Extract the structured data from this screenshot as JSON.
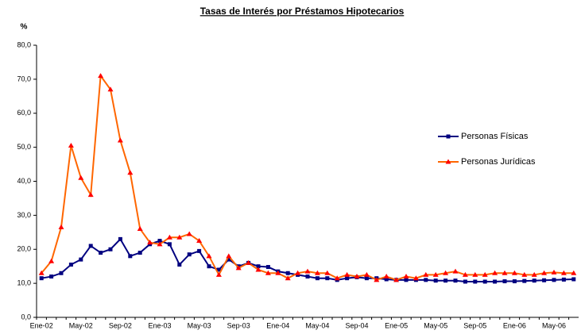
{
  "chart_data": {
    "type": "line",
    "title": "Tasas de Interés por Préstamos Hipotecarios",
    "y_label": "%",
    "categories": [
      "Ene-02",
      null,
      null,
      null,
      "May-02",
      null,
      null,
      null,
      "Sep-02",
      null,
      null,
      null,
      "Ene-03",
      null,
      null,
      null,
      "May-03",
      null,
      null,
      null,
      "Sep-03",
      null,
      null,
      null,
      "Ene-04",
      null,
      null,
      null,
      "May-04",
      null,
      null,
      null,
      "Sep-04",
      null,
      null,
      null,
      "Ene-05",
      null,
      null,
      null,
      "May-05",
      null,
      null,
      null,
      "Sep-05",
      null,
      null,
      null,
      "Ene-06",
      null,
      null,
      null,
      "May-06",
      null,
      null
    ],
    "series": [
      {
        "name": "Personas Físicas",
        "color": "#000080",
        "marker": "square",
        "values": [
          11.5,
          12,
          13,
          15.5,
          17,
          21,
          19,
          20,
          23,
          18,
          19,
          21.5,
          22.5,
          21.5,
          15.5,
          18.5,
          19.5,
          15,
          14,
          17,
          15,
          16,
          15,
          14.8,
          13.5,
          13,
          12.5,
          12,
          11.5,
          11.5,
          11,
          11.5,
          11.8,
          11.5,
          11.5,
          11.2,
          11,
          11,
          11,
          11,
          10.8,
          10.8,
          10.8,
          10.5,
          10.5,
          10.5,
          10.5,
          10.6,
          10.6,
          10.7,
          10.8,
          10.9,
          11,
          11.1,
          11.2
        ]
      },
      {
        "name": "Personas Jurídicas",
        "color": "#ff6600",
        "marker": "triangle",
        "values": [
          13,
          16.5,
          26.5,
          50.5,
          41,
          36,
          71,
          67,
          52,
          42.5,
          26,
          22,
          21.5,
          23.5,
          23.5,
          24.5,
          22.5,
          18,
          12.5,
          18,
          14.5,
          16,
          14,
          13,
          13,
          11.5,
          13,
          13.5,
          13,
          13,
          11.5,
          12.5,
          12,
          12.5,
          11,
          12,
          11,
          12,
          11.5,
          12.5,
          12.5,
          13,
          13.5,
          12.5,
          12.5,
          12.5,
          13,
          13,
          13,
          12.5,
          12.5,
          13,
          13.2,
          13,
          13
        ]
      }
    ],
    "ylim": [
      0,
      80
    ],
    "yticks": [
      {
        "value": 0,
        "label": "0,0"
      },
      {
        "value": 10,
        "label": "10,0"
      },
      {
        "value": 20,
        "label": "20,0"
      },
      {
        "value": 30,
        "label": "30,0"
      },
      {
        "value": 40,
        "label": "40,0"
      },
      {
        "value": 50,
        "label": "50,0"
      },
      {
        "value": 60,
        "label": "60,0"
      },
      {
        "value": 70,
        "label": "70,0"
      },
      {
        "value": 80,
        "label": "80,0"
      }
    ],
    "grid": false,
    "legend": "right"
  }
}
